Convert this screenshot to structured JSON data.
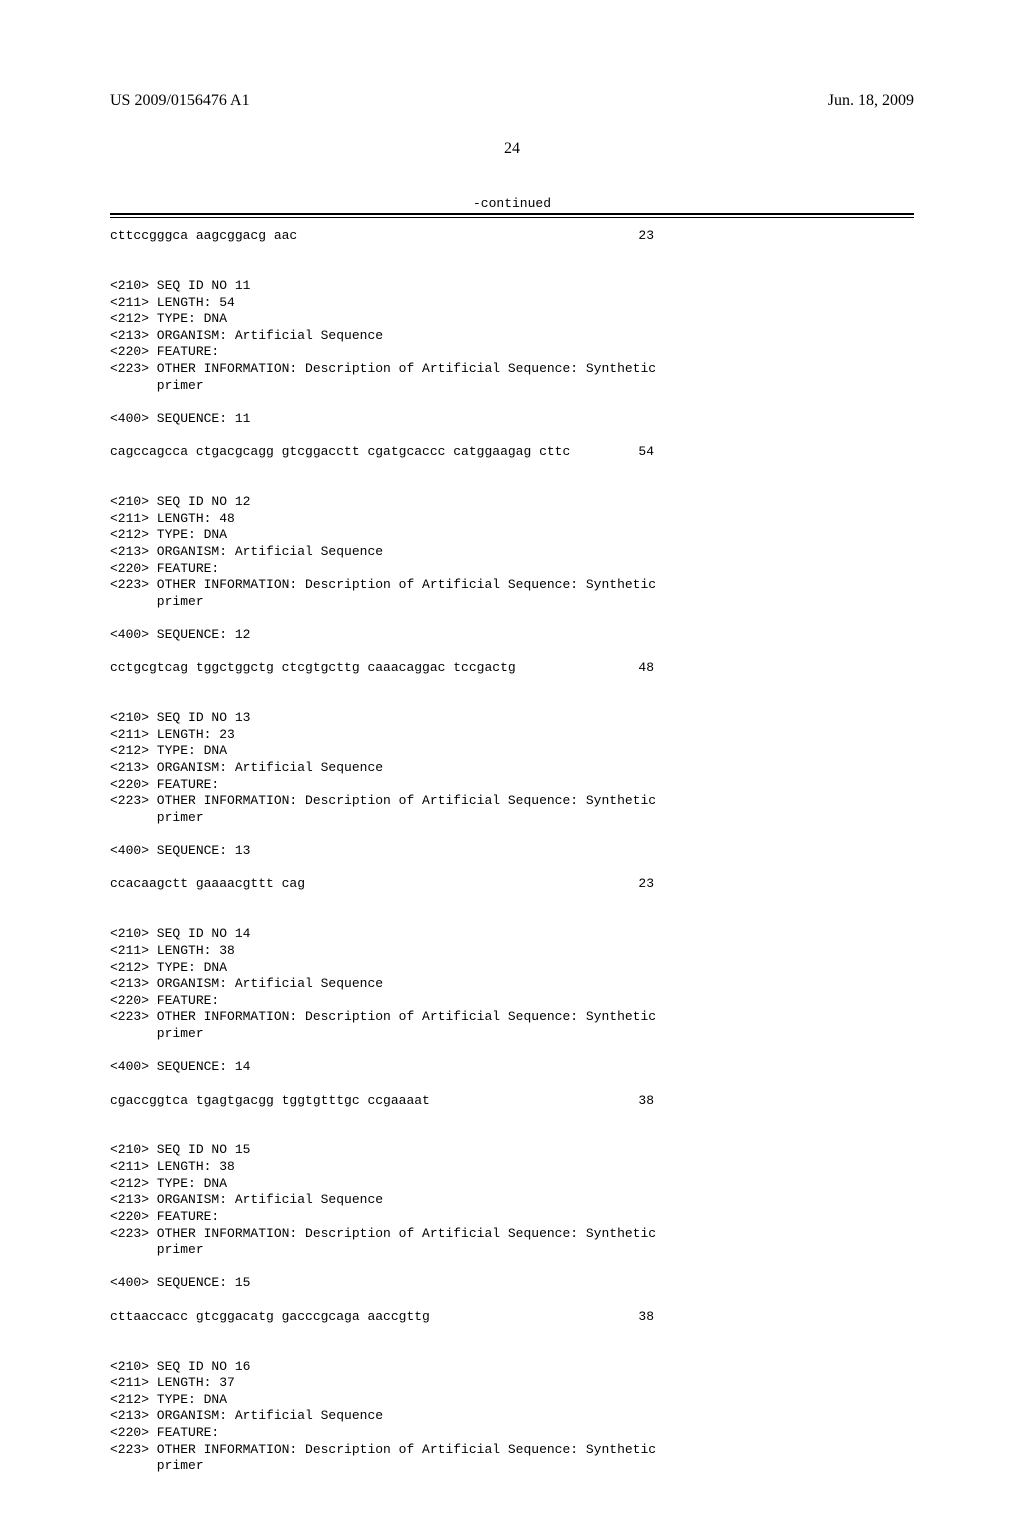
{
  "header": {
    "pub_number": "US 2009/0156476 A1",
    "pub_date": "Jun. 18, 2009"
  },
  "page_number": "24",
  "continued_label": "-continued",
  "first_seq": {
    "seq": "cttccgggca aagcggacg aac",
    "len": "23"
  },
  "entries": [
    {
      "id": "11",
      "length": "54",
      "type": "DNA",
      "seq": "cagccagcca ctgacgcagg gtcggacctt cgatgcaccc catggaagag cttc",
      "len": "54"
    },
    {
      "id": "12",
      "length": "48",
      "type": "DNA",
      "seq": "cctgcgtcag tggctggctg ctcgtgcttg caaacaggac tccgactg",
      "len": "48"
    },
    {
      "id": "13",
      "length": "23",
      "type": "DNA",
      "seq": "ccacaagctt gaaaacgttt cag",
      "len": "23"
    },
    {
      "id": "14",
      "length": "38",
      "type": "DNA",
      "seq": "cgaccggtca tgagtgacgg tggtgtttgc ccgaaaat",
      "len": "38"
    },
    {
      "id": "15",
      "length": "38",
      "type": "DNA",
      "seq": "cttaaccacc gtcggacatg gacccgcaga aaccgttg",
      "len": "38"
    },
    {
      "id": "16",
      "length": "37",
      "type": "DNA",
      "seq": "",
      "len": ""
    }
  ],
  "labels": {
    "seq_id_prefix": "<210> SEQ ID NO ",
    "length_prefix": "<211> LENGTH: ",
    "type_prefix": "<212> TYPE: ",
    "organism": "<213> ORGANISM: Artificial Sequence",
    "feature": "<220> FEATURE:",
    "other_info": "<223> OTHER INFORMATION: Description of Artificial Sequence: Synthetic",
    "other_info_cont": "      primer",
    "sequence_prefix": "<400> SEQUENCE: "
  }
}
